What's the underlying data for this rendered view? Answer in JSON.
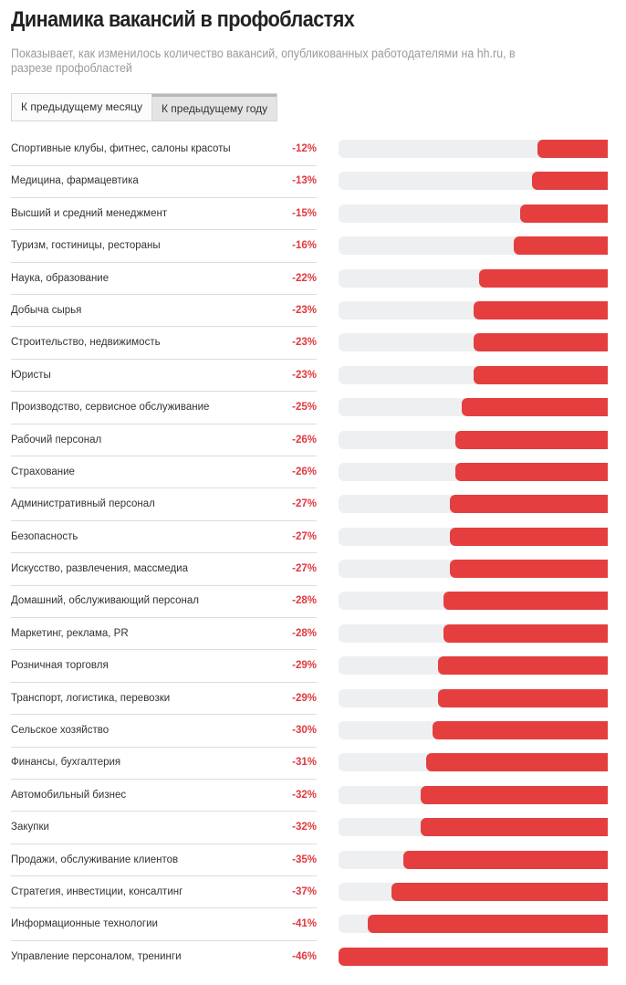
{
  "header": {
    "title": "Динамика вакансий в профобластях",
    "subtitle": "Показывает, как изменилось количество вакансий, опубликованных работодателями на hh.ru, в разрезе профобластей"
  },
  "tabs": [
    {
      "label": "К предыдущему месяцу",
      "active": false
    },
    {
      "label": "К предыдущему году",
      "active": true
    }
  ],
  "colors": {
    "accent": "#e53e3e",
    "track": "#eeeff1",
    "value_text": "#e0393e"
  },
  "chart_data": {
    "type": "bar",
    "orientation": "horizontal",
    "title": "Динамика вакансий в профобластях",
    "xlabel": "",
    "ylabel": "",
    "xlim": [
      -46,
      0
    ],
    "grid": false,
    "categories": [
      "Спортивные клубы, фитнес, салоны красоты",
      "Медицина, фармацевтика",
      "Высший и средний менеджмент",
      "Туризм, гостиницы, рестораны",
      "Наука, образование",
      "Добыча сырья",
      "Строительство, недвижимость",
      "Юристы",
      "Производство, сервисное обслуживание",
      "Рабочий персонал",
      "Страхование",
      "Административный персонал",
      "Безопасность",
      "Искусство, развлечения, массмедиа",
      "Домашний, обслуживающий персонал",
      "Маркетинг, реклама, PR",
      "Розничная торговля",
      "Транспорт, логистика, перевозки",
      "Сельское хозяйство",
      "Финансы, бухгалтерия",
      "Автомобильный бизнес",
      "Закупки",
      "Продажи, обслуживание клиентов",
      "Стратегия, инвестиции, консалтинг",
      "Информационные технологии",
      "Управление персоналом, тренинги"
    ],
    "values": [
      -12,
      -13,
      -15,
      -16,
      -22,
      -23,
      -23,
      -23,
      -25,
      -26,
      -26,
      -27,
      -27,
      -27,
      -28,
      -28,
      -29,
      -29,
      -30,
      -31,
      -32,
      -32,
      -35,
      -37,
      -41,
      -46
    ],
    "value_labels": [
      "-12%",
      "-13%",
      "-15%",
      "-16%",
      "-22%",
      "-23%",
      "-23%",
      "-23%",
      "-25%",
      "-26%",
      "-26%",
      "-27%",
      "-27%",
      "-27%",
      "-28%",
      "-28%",
      "-29%",
      "-29%",
      "-30%",
      "-31%",
      "-32%",
      "-32%",
      "-35%",
      "-37%",
      "-41%",
      "-46%"
    ]
  }
}
